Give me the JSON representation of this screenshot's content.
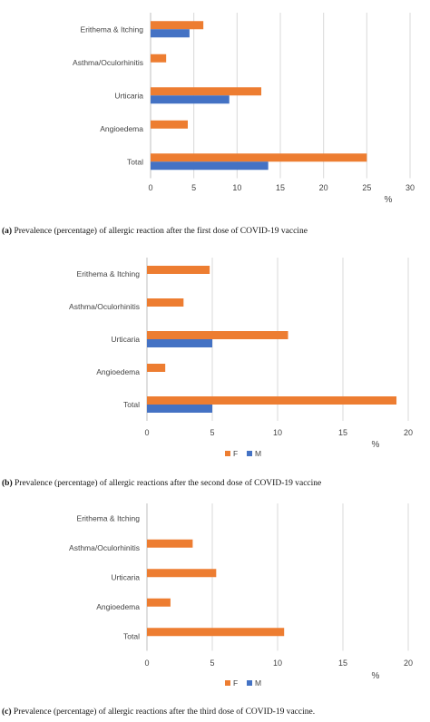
{
  "colors": {
    "F": "#ED7D31",
    "M": "#4472C4",
    "grid": "#D9D9D9",
    "axis": "#BFBFBF"
  },
  "chart_data": [
    {
      "type": "bar",
      "orientation": "horizontal",
      "categories": [
        "Erithema & Itching",
        "Asthma/Oculorhinitis",
        "Urticaria",
        "Angioedema",
        "Total"
      ],
      "series": [
        {
          "name": "F",
          "values": [
            6.1,
            1.8,
            12.8,
            4.3,
            25.0
          ]
        },
        {
          "name": "M",
          "values": [
            4.5,
            0,
            9.1,
            0,
            13.6
          ]
        }
      ],
      "xlim": [
        0,
        30
      ],
      "xticks": [
        0,
        5,
        10,
        15,
        20,
        25,
        30
      ],
      "unit_label": "%",
      "grid": true,
      "legend_position": "none"
    },
    {
      "type": "bar",
      "orientation": "horizontal",
      "categories": [
        "Erithema & Itching",
        "Asthma/Oculorhinitis",
        "Urticaria",
        "Angioedema",
        "Total"
      ],
      "series": [
        {
          "name": "F",
          "values": [
            4.8,
            2.8,
            10.8,
            1.4,
            19.1
          ]
        },
        {
          "name": "M",
          "values": [
            0,
            0,
            5.0,
            0,
            5.0
          ]
        }
      ],
      "xlim": [
        0,
        20
      ],
      "xticks": [
        0,
        5,
        10,
        15,
        20
      ],
      "unit_label": "%",
      "grid": true,
      "legend_position": "bottom"
    },
    {
      "type": "bar",
      "orientation": "horizontal",
      "categories": [
        "Erithema & Itching",
        "Asthma/Oculorhinitis",
        "Urticaria",
        "Angioedema",
        "Total"
      ],
      "series": [
        {
          "name": "F",
          "values": [
            0,
            3.5,
            5.3,
            1.8,
            10.5
          ]
        },
        {
          "name": "M",
          "values": [
            0,
            0,
            0,
            0,
            0
          ]
        }
      ],
      "xlim": [
        0,
        20
      ],
      "xticks": [
        0,
        5,
        10,
        15,
        20
      ],
      "unit_label": "%",
      "grid": true,
      "legend_position": "bottom"
    }
  ],
  "captions": [
    {
      "label": "(a)",
      "text": " Prevalence (percentage) of allergic reaction after the first dose of COVID-19 vaccine"
    },
    {
      "label": "(b)",
      "text": " Prevalence (percentage) of allergic reactions after the second dose of COVID-19 vaccine"
    },
    {
      "label": "(c)",
      "text": " Prevalence (percentage) of allergic reactions after the third dose of COVID-19 vaccine."
    }
  ]
}
